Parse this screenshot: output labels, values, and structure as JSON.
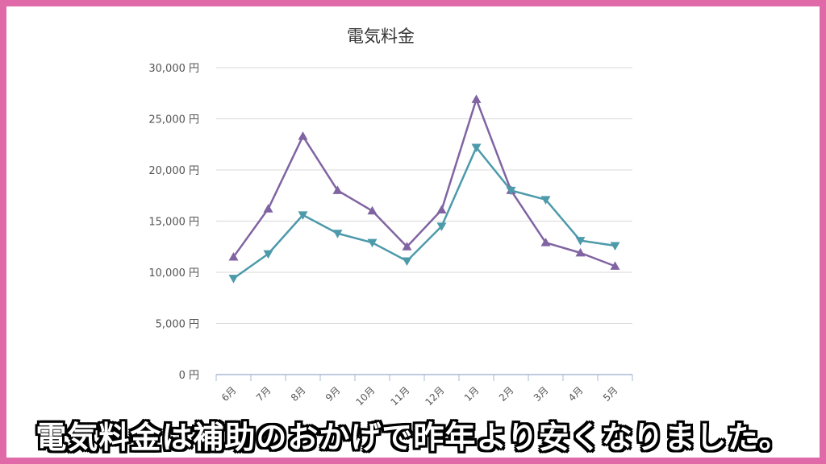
{
  "caption": "電気料金は補助のおかげで昨年より安くなりました。",
  "chart_data": {
    "type": "line",
    "title": "電気料金",
    "xlabel": "",
    "ylabel": "",
    "categories": [
      "6月",
      "7月",
      "8月",
      "9月",
      "10月",
      "11月",
      "12月",
      "1月",
      "2月",
      "3月",
      "4月",
      "5月"
    ],
    "ylim": [
      0,
      30000
    ],
    "yticks": [
      0,
      5000,
      10000,
      15000,
      20000,
      25000,
      30000
    ],
    "ytick_labels": [
      "0 円",
      "5,000 円",
      "10,000 円",
      "15,000 円",
      "20,000 円",
      "25,000 円",
      "30,000 円"
    ],
    "grid": true,
    "series": [
      {
        "values": [
          11500,
          16200,
          23300,
          18000,
          16000,
          12500,
          16100,
          26900,
          18000,
          12900,
          11900,
          10600
        ],
        "color": "#8064a2",
        "marker": "triangle-up"
      },
      {
        "values": [
          9400,
          11800,
          15600,
          13800,
          12900,
          11100,
          14500,
          22200,
          18000,
          17100,
          13100,
          12600
        ],
        "color": "#4d9aab",
        "marker": "triangle-down"
      }
    ]
  }
}
